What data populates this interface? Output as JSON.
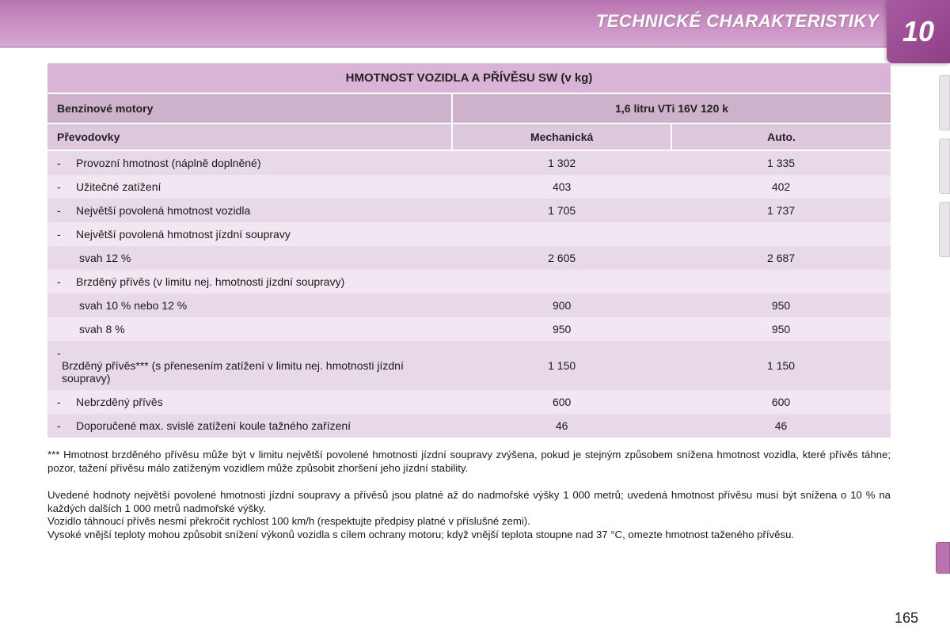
{
  "header": {
    "title": "TECHNICKÉ CHARAKTERISTIKY",
    "chapter": "10"
  },
  "pageNumber": "165",
  "table": {
    "title": "HMOTNOST VOZIDLA A PŘÍVĚSU SW (v kg)",
    "engine_label": "Benzinové motory",
    "engine_value": "1,6 litru VTi 16V 120 k",
    "gearbox_label": "Převodovky",
    "gearbox_a": "Mechanická",
    "gearbox_b": "Auto.",
    "rows": [
      {
        "label": "Provozní hmotnost (náplně doplněné)",
        "a": "1 302",
        "b": "1 335",
        "bullet": true
      },
      {
        "label": "Užitečné zatížení",
        "a": "403",
        "b": "402",
        "bullet": true
      },
      {
        "label": "Největší povolená hmotnost vozidla",
        "a": "1 705",
        "b": "1 737",
        "bullet": true
      },
      {
        "label": "Největší povolená hmotnost jízdní soupravy",
        "a": "",
        "b": "",
        "bullet": true
      },
      {
        "label": "svah 12 %",
        "a": "2 605",
        "b": "2 687",
        "bullet": false
      },
      {
        "label": "Brzděný přívěs (v limitu nej. hmotnosti jízdní soupravy)",
        "a": "",
        "b": "",
        "bullet": true
      },
      {
        "label": "svah 10 % nebo 12 %",
        "a": "900",
        "b": "950",
        "bullet": false
      },
      {
        "label": "svah 8 %",
        "a": "950",
        "b": "950",
        "bullet": false
      },
      {
        "label": "Brzděný přívěs*** (s přenesením zatížení v limitu nej. hmotnosti jízdní soupravy)",
        "a": "1 150",
        "b": "1 150",
        "bullet": true
      },
      {
        "label": "Nebrzděný přívěs",
        "a": "600",
        "b": "600",
        "bullet": true
      },
      {
        "label": "Doporučené max. svislé zatížení koule tažného zařízení",
        "a": "46",
        "b": "46",
        "bullet": true
      }
    ]
  },
  "footnote1": "*** Hmotnost brzděného přívěsu může být v limitu největší povolené hmotnosti jízdní soupravy zvýšena, pokud je stejným způsobem snížena hmotnost vozidla, které přívěs táhne; pozor, tažení přívěsu málo zatíženým vozidlem může způsobit zhoršení jeho jízdní stability.",
  "footnote2a": "Uvedené hodnoty největší povolené hmotnosti jízdní soupravy a přívěsů jsou platné až do nadmořské výšky 1 000 metrů; uvedená hmotnost přívěsu musí být snížena o 10 % na každých dalších 1 000 metrů nadmořské výšky.",
  "footnote2b": "Vozidlo táhnoucí přívěs nesmí překročit rychlost 100 km/h (respektujte předpisy platné v příslušné zemi).",
  "footnote2c": "Vysoké vnější teploty mohou způsobit snížení výkonů vozidla s cílem ochrany motoru; když vnější teplota stoupne nad 37 °C, omezte hmotnost taženého přívěsu."
}
